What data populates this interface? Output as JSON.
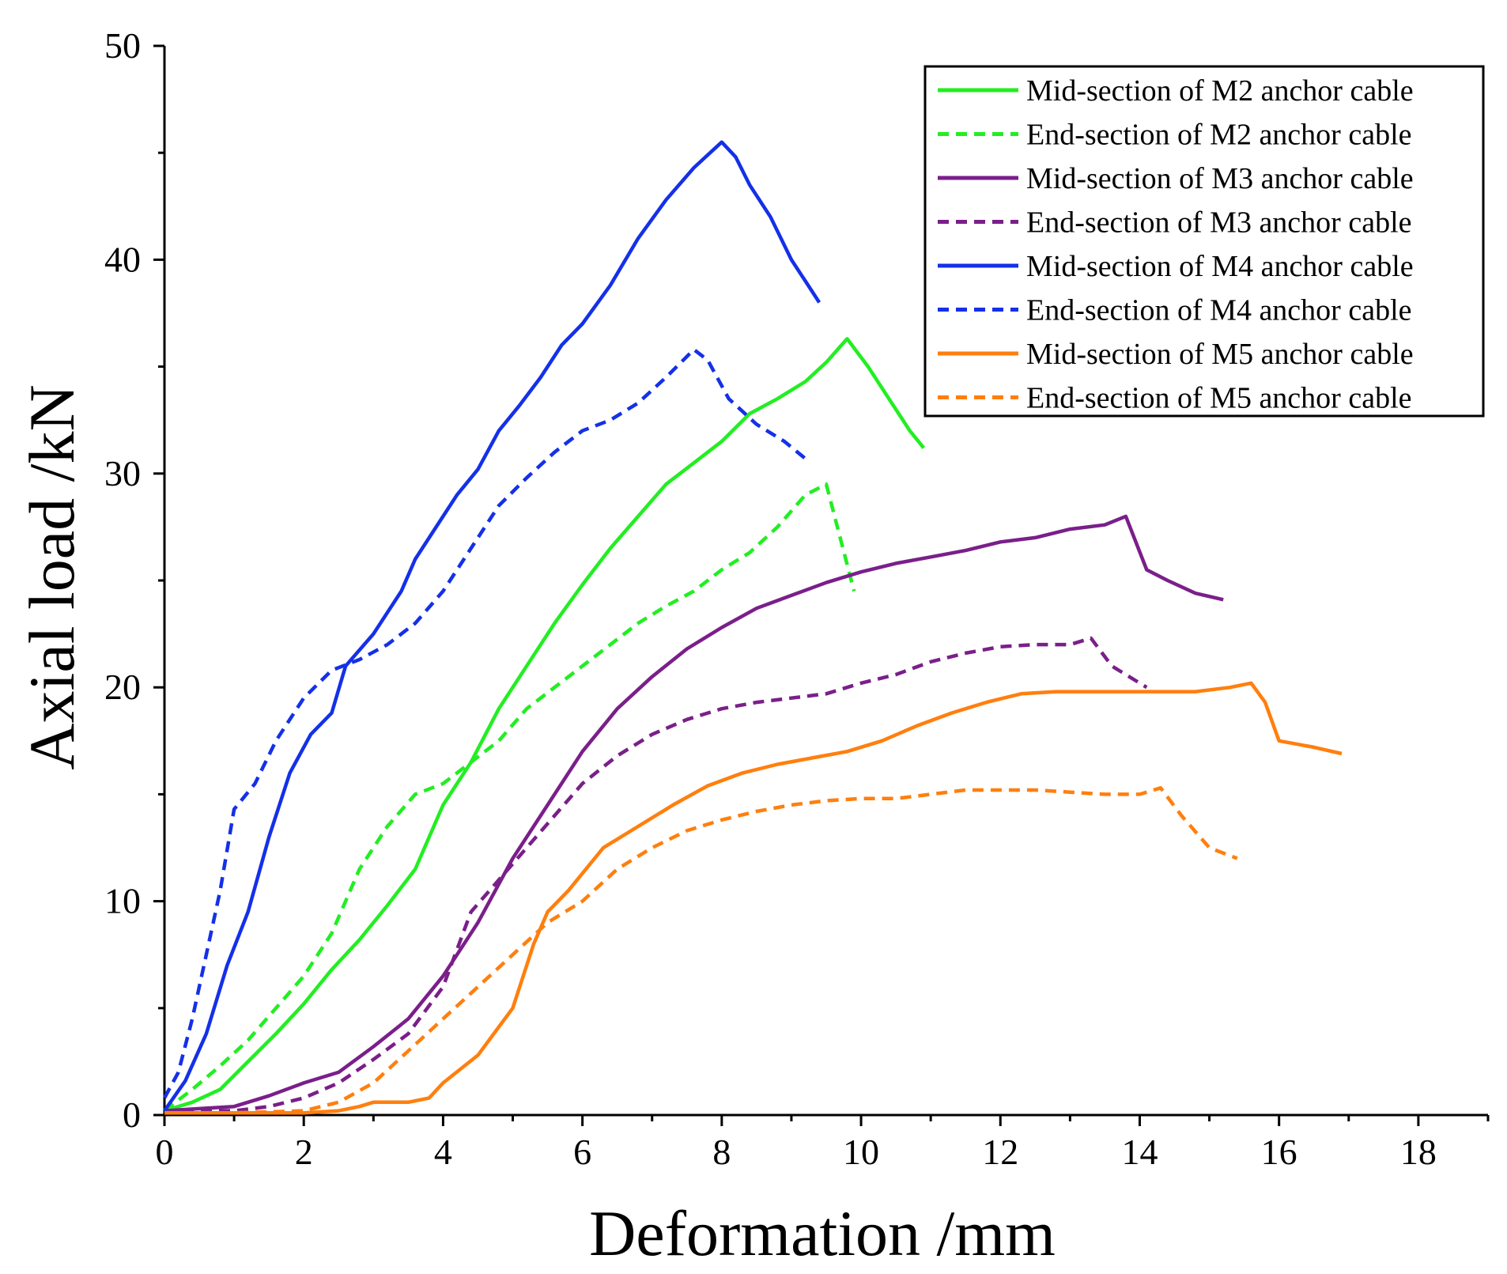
{
  "chart_data": {
    "type": "line",
    "title": "",
    "xlabel": "Deformation /mm",
    "ylabel": "Axial load /kN",
    "xlim": [
      0,
      19
    ],
    "ylim": [
      0,
      50
    ],
    "xticks": [
      0,
      2,
      4,
      6,
      8,
      10,
      12,
      14,
      16,
      18
    ],
    "yticks": [
      0,
      10,
      20,
      30,
      40,
      50
    ],
    "legend_position": "top-right",
    "series": [
      {
        "name": "Mid-section of M2 anchor cable",
        "color": "#22ee22",
        "dash": "solid",
        "x": [
          0,
          0.4,
          0.8,
          1.2,
          1.6,
          2.0,
          2.4,
          2.8,
          3.2,
          3.6,
          4.0,
          4.4,
          4.8,
          5.2,
          5.6,
          6.0,
          6.4,
          6.8,
          7.2,
          7.6,
          8.0,
          8.4,
          8.8,
          9.2,
          9.5,
          9.8,
          10.1,
          10.4,
          10.7,
          10.9
        ],
        "y": [
          0.2,
          0.6,
          1.2,
          2.5,
          3.8,
          5.2,
          6.8,
          8.2,
          9.8,
          11.5,
          14.5,
          16.5,
          19.0,
          21.0,
          23.0,
          24.8,
          26.5,
          28.0,
          29.5,
          30.5,
          31.5,
          32.8,
          33.5,
          34.3,
          35.2,
          36.3,
          35.0,
          33.5,
          32.0,
          31.2
        ]
      },
      {
        "name": "End-section of M2 anchor cable",
        "color": "#22ee22",
        "dash": "dashed",
        "x": [
          0,
          0.4,
          0.8,
          1.2,
          1.6,
          2.0,
          2.4,
          2.8,
          3.2,
          3.6,
          4.0,
          4.4,
          4.8,
          5.2,
          5.6,
          6.0,
          6.4,
          6.8,
          7.2,
          7.6,
          8.0,
          8.4,
          8.8,
          9.2,
          9.5,
          9.7,
          9.9
        ],
        "y": [
          0.2,
          1.2,
          2.3,
          3.5,
          5.0,
          6.5,
          8.5,
          11.5,
          13.5,
          15.0,
          15.5,
          16.5,
          17.5,
          19.0,
          20.0,
          21.0,
          22.0,
          23.0,
          23.8,
          24.5,
          25.5,
          26.3,
          27.5,
          29.0,
          29.5,
          27.0,
          24.5
        ]
      },
      {
        "name": "Mid-section of M3 anchor cable",
        "color": "#7a1f8a",
        "dash": "solid",
        "x": [
          0,
          0.5,
          1.0,
          1.5,
          2.0,
          2.5,
          3.0,
          3.5,
          4.0,
          4.5,
          5.0,
          5.5,
          6.0,
          6.5,
          7.0,
          7.5,
          8.0,
          8.5,
          9.0,
          9.5,
          10.0,
          10.5,
          11.0,
          11.5,
          12.0,
          12.5,
          13.0,
          13.5,
          13.8,
          14.1,
          14.4,
          14.8,
          15.2
        ],
        "y": [
          0.2,
          0.3,
          0.4,
          0.9,
          1.5,
          2.0,
          3.2,
          4.5,
          6.5,
          9.0,
          12.0,
          14.5,
          17.0,
          19.0,
          20.5,
          21.8,
          22.8,
          23.7,
          24.3,
          24.9,
          25.4,
          25.8,
          26.1,
          26.4,
          26.8,
          27.0,
          27.4,
          27.6,
          28.0,
          25.5,
          25.0,
          24.4,
          24.1
        ]
      },
      {
        "name": "End-section of M3 anchor cable",
        "color": "#7a1f8a",
        "dash": "dashed",
        "x": [
          0,
          1.0,
          1.5,
          2.0,
          2.5,
          3.0,
          3.5,
          4.0,
          4.4,
          4.8,
          5.2,
          5.6,
          6.0,
          6.5,
          7.0,
          7.5,
          8.0,
          8.5,
          9.0,
          9.5,
          10.0,
          10.5,
          11.0,
          11.5,
          12.0,
          12.5,
          13.0,
          13.3,
          13.6,
          14.1
        ],
        "y": [
          0.2,
          0.2,
          0.4,
          0.8,
          1.5,
          2.6,
          3.8,
          6.0,
          9.5,
          11.0,
          12.5,
          14.0,
          15.5,
          16.8,
          17.8,
          18.5,
          19.0,
          19.3,
          19.5,
          19.7,
          20.2,
          20.6,
          21.2,
          21.6,
          21.9,
          22.0,
          22.0,
          22.3,
          21.0,
          20.0
        ]
      },
      {
        "name": "Mid-section of M4 anchor cable",
        "color": "#1430e8",
        "dash": "solid",
        "x": [
          0,
          0.3,
          0.6,
          0.9,
          1.2,
          1.5,
          1.8,
          2.1,
          2.4,
          2.6,
          3.0,
          3.4,
          3.6,
          3.9,
          4.2,
          4.5,
          4.8,
          5.1,
          5.4,
          5.7,
          6.0,
          6.4,
          6.8,
          7.2,
          7.6,
          8.0,
          8.2,
          8.4,
          8.7,
          9.0,
          9.2,
          9.4
        ],
        "y": [
          0.2,
          1.6,
          3.8,
          7.0,
          9.5,
          13.0,
          16.0,
          17.8,
          18.8,
          21.0,
          22.5,
          24.5,
          26.0,
          27.5,
          29.0,
          30.2,
          32.0,
          33.2,
          34.5,
          36.0,
          37.0,
          38.8,
          41.0,
          42.8,
          44.3,
          45.5,
          44.8,
          43.5,
          42.0,
          40.0,
          39.0,
          38.0
        ]
      },
      {
        "name": "End-section of M4 anchor cable",
        "color": "#1430e8",
        "dash": "dashed",
        "x": [
          0,
          0.2,
          0.4,
          0.6,
          0.8,
          1.0,
          1.3,
          1.6,
          2.0,
          2.4,
          2.8,
          3.2,
          3.6,
          4.0,
          4.4,
          4.8,
          5.2,
          5.6,
          6.0,
          6.4,
          6.8,
          7.2,
          7.6,
          7.8,
          8.1,
          8.5,
          8.9,
          9.2
        ],
        "y": [
          0.8,
          2.0,
          4.5,
          7.5,
          10.5,
          14.3,
          15.5,
          17.5,
          19.5,
          20.8,
          21.3,
          22.0,
          23.0,
          24.5,
          26.5,
          28.5,
          29.8,
          31.0,
          32.0,
          32.5,
          33.3,
          34.5,
          35.8,
          35.3,
          33.5,
          32.3,
          31.5,
          30.7
        ]
      },
      {
        "name": "Mid-section of M5 anchor cable",
        "color": "#ff7f0e",
        "dash": "solid",
        "x": [
          0,
          1.0,
          2.0,
          2.5,
          2.8,
          3.0,
          3.5,
          3.8,
          4.0,
          4.5,
          5.0,
          5.3,
          5.5,
          5.8,
          6.0,
          6.3,
          6.8,
          7.3,
          7.8,
          8.3,
          8.8,
          9.3,
          9.8,
          10.3,
          10.8,
          11.3,
          11.8,
          12.3,
          12.8,
          13.3,
          13.8,
          14.3,
          14.8,
          15.3,
          15.6,
          15.8,
          16.0,
          16.5,
          16.9
        ],
        "y": [
          0.1,
          0.1,
          0.1,
          0.2,
          0.4,
          0.6,
          0.6,
          0.8,
          1.5,
          2.8,
          5.0,
          8.0,
          9.5,
          10.5,
          11.3,
          12.5,
          13.5,
          14.5,
          15.4,
          16.0,
          16.4,
          16.7,
          17.0,
          17.5,
          18.2,
          18.8,
          19.3,
          19.7,
          19.8,
          19.8,
          19.8,
          19.8,
          19.8,
          20.0,
          20.2,
          19.3,
          17.5,
          17.2,
          16.9
        ]
      },
      {
        "name": "End-section of M5 anchor cable",
        "color": "#ff7f0e",
        "dash": "dashed",
        "x": [
          0,
          1.0,
          2.0,
          2.5,
          3.0,
          3.5,
          4.0,
          4.5,
          5.0,
          5.5,
          6.0,
          6.5,
          7.0,
          7.5,
          8.0,
          8.5,
          9.0,
          9.5,
          10.0,
          10.5,
          11.0,
          11.5,
          12.0,
          12.5,
          13.0,
          13.5,
          14.0,
          14.3,
          14.6,
          15.0,
          15.4
        ],
        "y": [
          0.1,
          0.1,
          0.2,
          0.6,
          1.5,
          3.0,
          4.5,
          6.0,
          7.5,
          9.0,
          10.0,
          11.5,
          12.5,
          13.3,
          13.8,
          14.2,
          14.5,
          14.7,
          14.8,
          14.8,
          15.0,
          15.2,
          15.2,
          15.2,
          15.1,
          15.0,
          15.0,
          15.3,
          14.0,
          12.5,
          12.0
        ]
      }
    ]
  }
}
